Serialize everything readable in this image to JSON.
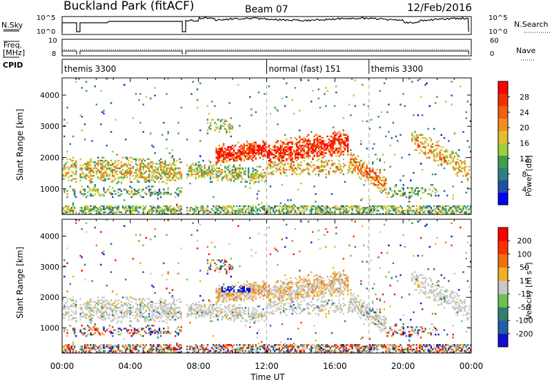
{
  "header": {
    "site": "Buckland Park (fitACF)",
    "beam": "Beam 07",
    "date": "12/Feb/2016"
  },
  "side_labels": {
    "nsky": "N.Sky",
    "freq": "Freq.",
    "mhz": "[MHz]",
    "cpid": "CPID",
    "nsearch": "N.Search",
    "nave": "Nave"
  },
  "ticks": {
    "nsky_top": "10^5",
    "nsky_bottom": "10^0",
    "nsearch_top": "10^5",
    "nsearch_bottom": "10^0",
    "freq_top": "10",
    "freq_bottom": "8",
    "nave_top": "60",
    "nave_bottom": "0"
  },
  "cpid_segments": [
    {
      "label": "themis 3300",
      "start_hour": 0.0
    },
    {
      "label": "normal (fast) 151",
      "start_hour": 12.0
    },
    {
      "label": "themis 3300",
      "start_hour": 18.0
    }
  ],
  "chart_data": [
    {
      "type": "heatmap",
      "title": "",
      "xlabel": "",
      "ylabel": "Slant Range [km]",
      "xlim": [
        0,
        24
      ],
      "ylim": [
        180,
        4550
      ],
      "y_ticks": [
        1000,
        2000,
        3000,
        4000
      ],
      "x_ticks": [
        0,
        4,
        8,
        12,
        16,
        20,
        24
      ],
      "colorbar": {
        "label": "Power [dB]",
        "ticks": [
          "4",
          "8",
          "12",
          "16",
          "20",
          "24",
          "28"
        ],
        "range": [
          0,
          30
        ]
      },
      "scan_boundaries_hours": [
        12,
        18
      ]
    },
    {
      "type": "heatmap",
      "title": "",
      "xlabel": "Time UT",
      "ylabel": "Slant Range [km]",
      "xlim": [
        0,
        24
      ],
      "ylim": [
        180,
        4550
      ],
      "y_ticks": [
        1000,
        2000,
        3000,
        4000
      ],
      "x_ticks": [
        0,
        4,
        8,
        12,
        16,
        20,
        24
      ],
      "x_tick_labels": [
        "00:00",
        "04:00",
        "08:00",
        "12:00",
        "16:00",
        "20:00",
        "00:00"
      ],
      "colorbar": {
        "label": "Velocity [m s^-1]",
        "ticks": [
          "200",
          "100",
          "50",
          "15",
          "-15",
          "-50",
          "-100",
          "-200"
        ]
      },
      "scan_boundaries_hours": [
        12,
        18
      ]
    }
  ],
  "colors": {
    "power_scale": [
      "#0000ff",
      "#1f4fa8",
      "#2f7f7f",
      "#3f9f4f",
      "#9fcf3f",
      "#e0c030",
      "#f09020",
      "#f06010",
      "#f03000",
      "#ff0000"
    ],
    "velocity_scale": [
      "#1010d0",
      "#1f5fa8",
      "#2f7f6f",
      "#6fc04f",
      "#c8c8c8",
      "#f0b020",
      "#f07010",
      "#ff3000",
      "#ff0000"
    ]
  }
}
